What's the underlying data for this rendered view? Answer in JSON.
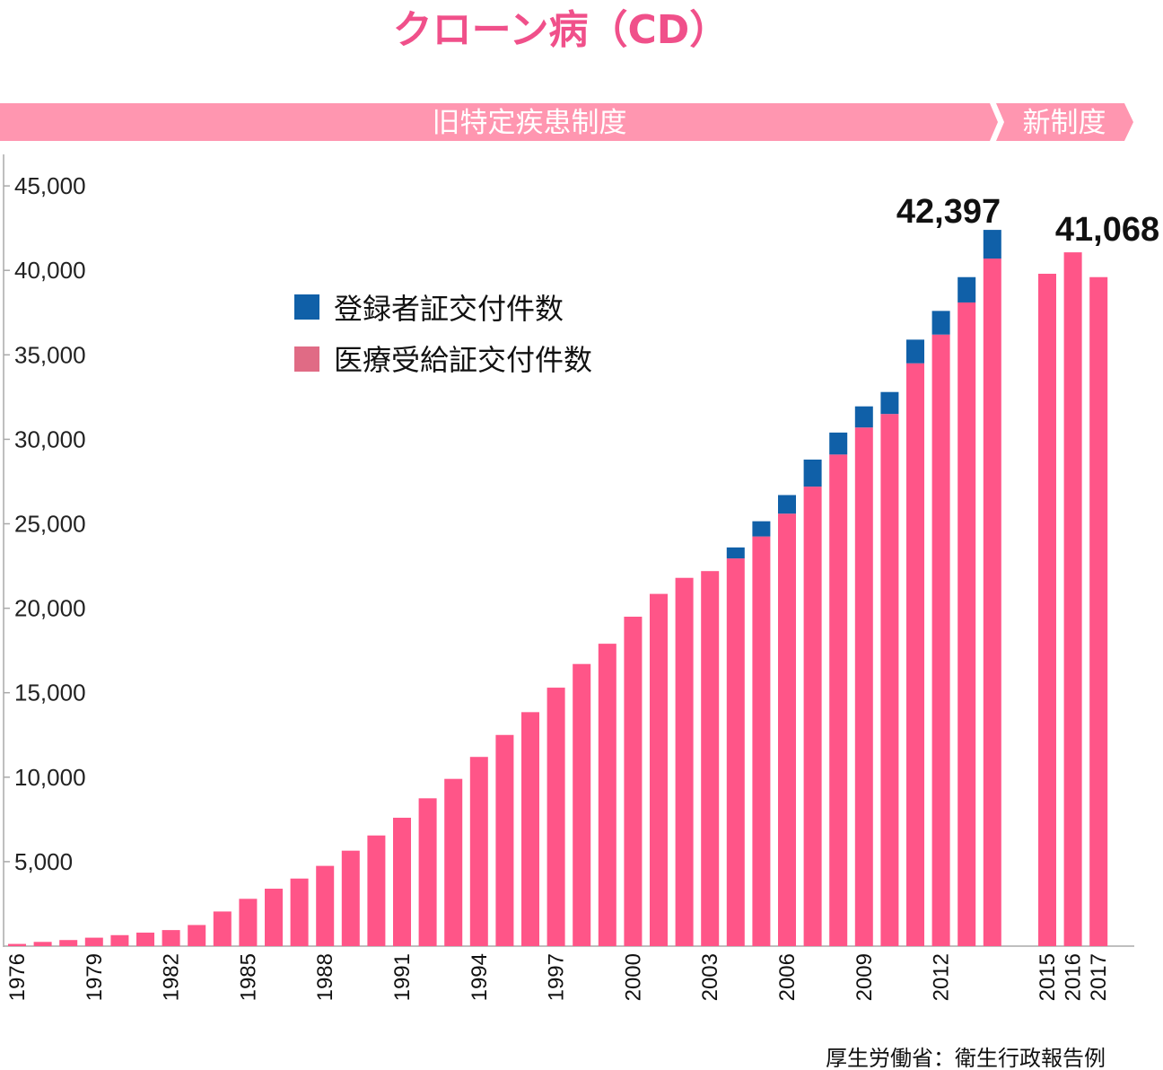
{
  "chart_data": {
    "type": "bar",
    "stacked": true,
    "title": "クローン病（CD）",
    "periods": [
      {
        "label": "旧特定疾患制度"
      },
      {
        "label": "新制度"
      }
    ],
    "x": [
      "1976",
      "1977",
      "1978",
      "1979",
      "1980",
      "1981",
      "1982",
      "1983",
      "1984",
      "1985",
      "1986",
      "1987",
      "1988",
      "1989",
      "1990",
      "1991",
      "1992",
      "1993",
      "1994",
      "1995",
      "1996",
      "1997",
      "1998",
      "1999",
      "2000",
      "2001",
      "2002",
      "2003",
      "2004",
      "2005",
      "2006",
      "2007",
      "2008",
      "2009",
      "2010",
      "2011",
      "2012",
      "2013",
      "2014",
      "2015",
      "2016",
      "2017"
    ],
    "x_tick_labels": [
      "1976",
      "1979",
      "1982",
      "1985",
      "1988",
      "1991",
      "1994",
      "1997",
      "2000",
      "2003",
      "2006",
      "2009",
      "2012",
      "2015",
      "2016",
      "2017"
    ],
    "gap_after": "2014",
    "series": [
      {
        "name": "医療受給証交付件数",
        "color": "#ff5588",
        "values": [
          130,
          250,
          360,
          500,
          650,
          800,
          950,
          1250,
          2050,
          2800,
          3400,
          4000,
          4750,
          5650,
          6550,
          7600,
          8750,
          9900,
          11200,
          12500,
          13850,
          15300,
          16700,
          17900,
          19500,
          20850,
          21800,
          22200,
          22950,
          24250,
          25600,
          27200,
          29100,
          30700,
          31500,
          34500,
          36200,
          38100,
          40700,
          39800,
          41068,
          39600
        ]
      },
      {
        "name": "登録者証交付件数",
        "color": "#1060a8",
        "values": [
          0,
          0,
          0,
          0,
          0,
          0,
          0,
          0,
          0,
          0,
          0,
          0,
          0,
          0,
          0,
          0,
          0,
          0,
          0,
          0,
          0,
          0,
          0,
          0,
          0,
          0,
          0,
          0,
          650,
          900,
          1100,
          1600,
          1300,
          1250,
          1300,
          1400,
          1400,
          1500,
          1697,
          0,
          0,
          0
        ]
      }
    ],
    "y_ticks": [
      "5,000",
      "10,000",
      "15,000",
      "20,000",
      "25,000",
      "30,000",
      "35,000",
      "40,000",
      "45,000"
    ],
    "ylim": [
      0,
      47000
    ],
    "legend_position": "upper-left",
    "legend_swatch_colors": [
      "#1060a8",
      "#e06b85"
    ],
    "annotations": [
      {
        "text": "42,397",
        "year": "2014"
      },
      {
        "text": "41,068",
        "year": "2016"
      }
    ],
    "band_color": "#ff96b0",
    "source": "厚生労働省：衛生行政報告例"
  }
}
